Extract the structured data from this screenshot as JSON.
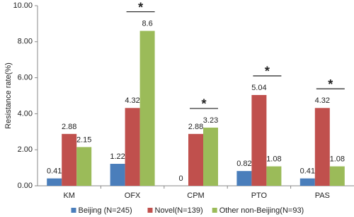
{
  "chart_data": {
    "type": "bar",
    "y_label": "Resistance rate(%)",
    "categories": [
      "KM",
      "OFX",
      "CPM",
      "PTO",
      "PAS"
    ],
    "series": [
      {
        "name": "Beijing (N=245)",
        "color": "#4a7ebb",
        "values": [
          0.41,
          1.22,
          0,
          0.82,
          0.41
        ]
      },
      {
        "name": "Novel(N=139)",
        "color": "#c0504d",
        "values": [
          2.88,
          4.32,
          2.88,
          5.04,
          4.32
        ]
      },
      {
        "name": "Other non-Beijing(N=93)",
        "color": "#9bbb59",
        "values": [
          2.15,
          8.6,
          3.23,
          1.08,
          1.08
        ]
      }
    ],
    "ylim": [
      0,
      10
    ],
    "yticks": [
      {
        "value": 0,
        "label": "0.00"
      },
      {
        "value": 2,
        "label": "2.00"
      },
      {
        "value": 4,
        "label": "4.00"
      },
      {
        "value": 6,
        "label": "6.00"
      },
      {
        "value": 8,
        "label": "8.00"
      },
      {
        "value": 10,
        "label": "10.00"
      }
    ],
    "annotations": [
      {
        "text": "*",
        "category": "OFX"
      },
      {
        "text": "*",
        "category": "CPM"
      },
      {
        "text": "*",
        "category": "PTO"
      },
      {
        "text": "*",
        "category": "PAS"
      }
    ],
    "legend": "bottom"
  }
}
